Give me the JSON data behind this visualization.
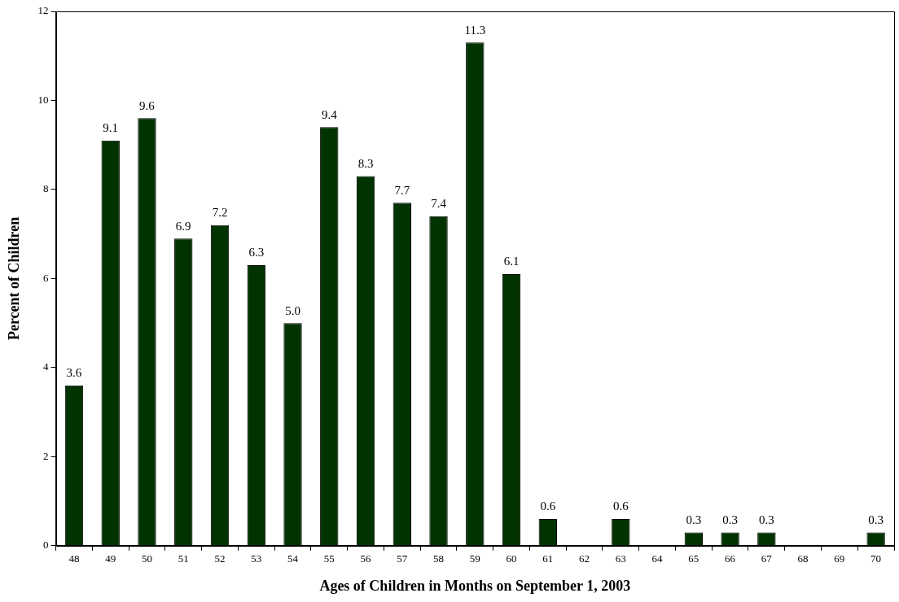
{
  "chart_data": {
    "type": "bar",
    "xlabel": "Ages of Children in Months on September 1, 2003",
    "ylabel": "Percent of Children",
    "categories": [
      "48",
      "49",
      "50",
      "51",
      "52",
      "53",
      "54",
      "55",
      "56",
      "57",
      "58",
      "59",
      "60",
      "61",
      "62",
      "63",
      "64",
      "65",
      "66",
      "67",
      "68",
      "69",
      "70"
    ],
    "values": [
      3.6,
      9.1,
      9.6,
      6.9,
      7.2,
      6.3,
      5.0,
      9.4,
      8.3,
      7.7,
      7.4,
      11.3,
      6.1,
      0.6,
      0,
      0.6,
      0,
      0.3,
      0.3,
      0.3,
      0,
      0,
      0.3
    ],
    "value_labels": [
      "3.6",
      "9.1",
      "9.6",
      "6.9",
      "7.2",
      "6.3",
      "5.0",
      "9.4",
      "8.3",
      "7.7",
      "7.4",
      "11.3",
      "6.1",
      "0.6",
      null,
      "0.6",
      null,
      "0.3",
      "0.3",
      "0.3",
      null,
      null,
      "0.3"
    ],
    "color": "#003300",
    "ylim": [
      0,
      12
    ],
    "yticks": [
      0,
      2,
      4,
      6,
      8,
      10,
      12
    ],
    "grid": false,
    "legend": false
  }
}
